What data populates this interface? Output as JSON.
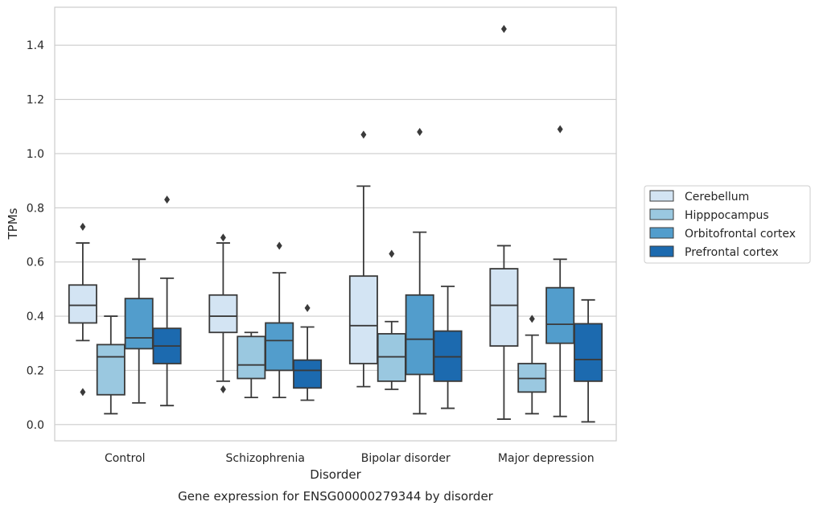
{
  "chart_data": {
    "type": "box",
    "caption": "Gene expression for ENSG00000279344 by disorder",
    "xlabel": "Disorder",
    "ylabel": "TPMs",
    "ylim": [
      -0.06,
      1.54
    ],
    "yticks": [
      0.0,
      0.2,
      0.4,
      0.6,
      0.8,
      1.0,
      1.2,
      1.4
    ],
    "ytick_labels": [
      "0.0",
      "0.2",
      "0.4",
      "0.6",
      "0.8",
      "1.0",
      "1.2",
      "1.4"
    ],
    "grid": true,
    "legend_position": "right",
    "categories": [
      "Control",
      "Schizophrenia",
      "Bipolar disorder",
      "Major depression"
    ],
    "series": [
      {
        "name": "Cerebellum",
        "color": "#d3e4f3",
        "boxes": [
          {
            "whislo": 0.31,
            "q1": 0.375,
            "med": 0.44,
            "q3": 0.515,
            "whishi": 0.67,
            "fliers": [
              0.73,
              0.12
            ]
          },
          {
            "whislo": 0.16,
            "q1": 0.34,
            "med": 0.4,
            "q3": 0.478,
            "whishi": 0.67,
            "fliers": [
              0.69,
              0.13
            ]
          },
          {
            "whislo": 0.14,
            "q1": 0.225,
            "med": 0.365,
            "q3": 0.548,
            "whishi": 0.88,
            "fliers": [
              1.07
            ]
          },
          {
            "whislo": 0.02,
            "q1": 0.29,
            "med": 0.44,
            "q3": 0.575,
            "whishi": 0.66,
            "fliers": [
              1.46
            ]
          }
        ]
      },
      {
        "name": "Hipppocampus",
        "color": "#9ac8e0",
        "boxes": [
          {
            "whislo": 0.04,
            "q1": 0.11,
            "med": 0.25,
            "q3": 0.295,
            "whishi": 0.4,
            "fliers": []
          },
          {
            "whislo": 0.1,
            "q1": 0.17,
            "med": 0.22,
            "q3": 0.325,
            "whishi": 0.34,
            "fliers": []
          },
          {
            "whislo": 0.13,
            "q1": 0.16,
            "med": 0.25,
            "q3": 0.335,
            "whishi": 0.38,
            "fliers": [
              0.63
            ]
          },
          {
            "whislo": 0.04,
            "q1": 0.12,
            "med": 0.17,
            "q3": 0.225,
            "whishi": 0.33,
            "fliers": [
              0.39
            ]
          }
        ]
      },
      {
        "name": "Orbitofrontal cortex",
        "color": "#529dcc",
        "boxes": [
          {
            "whislo": 0.08,
            "q1": 0.28,
            "med": 0.32,
            "q3": 0.465,
            "whishi": 0.61,
            "fliers": []
          },
          {
            "whislo": 0.1,
            "q1": 0.2,
            "med": 0.31,
            "q3": 0.375,
            "whishi": 0.56,
            "fliers": [
              0.66
            ]
          },
          {
            "whislo": 0.04,
            "q1": 0.185,
            "med": 0.315,
            "q3": 0.478,
            "whishi": 0.71,
            "fliers": [
              1.08
            ]
          },
          {
            "whislo": 0.03,
            "q1": 0.3,
            "med": 0.37,
            "q3": 0.505,
            "whishi": 0.61,
            "fliers": [
              1.09
            ]
          }
        ]
      },
      {
        "name": "Prefrontal cortex",
        "color": "#1c6aaf",
        "boxes": [
          {
            "whislo": 0.07,
            "q1": 0.225,
            "med": 0.29,
            "q3": 0.355,
            "whishi": 0.54,
            "fliers": [
              0.83
            ]
          },
          {
            "whislo": 0.09,
            "q1": 0.135,
            "med": 0.2,
            "q3": 0.238,
            "whishi": 0.36,
            "fliers": [
              0.43
            ]
          },
          {
            "whislo": 0.06,
            "q1": 0.16,
            "med": 0.25,
            "q3": 0.345,
            "whishi": 0.51,
            "fliers": []
          },
          {
            "whislo": 0.01,
            "q1": 0.16,
            "med": 0.24,
            "q3": 0.372,
            "whishi": 0.46,
            "fliers": []
          }
        ]
      }
    ]
  }
}
